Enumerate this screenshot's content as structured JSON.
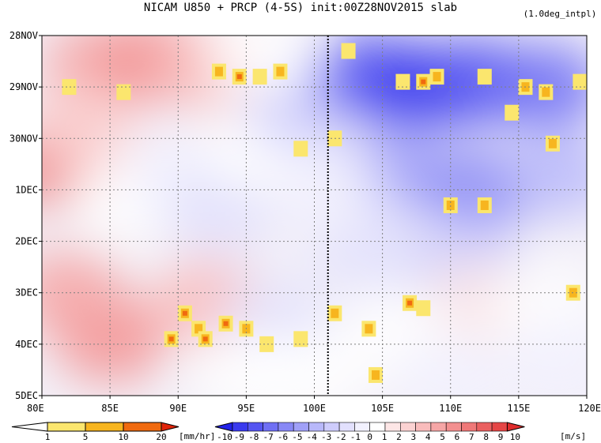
{
  "chart_data": {
    "type": "heatmap",
    "title": "NICAM   U850 + PRCP (4-5S) init:00Z28NOV2015 slab",
    "note": "(1.0deg_intpl)",
    "x_ticks": [
      "80E",
      "85E",
      "90E",
      "95E",
      "100E",
      "105E",
      "110E",
      "115E",
      "120E"
    ],
    "x_range": [
      80,
      120
    ],
    "y_ticks": [
      "28NOV",
      "29NOV",
      "30NOV",
      "1DEC",
      "2DEC",
      "3DEC",
      "4DEC",
      "5DEC"
    ],
    "y_range_days": [
      0,
      7
    ],
    "grid": true,
    "reference_line_lon": 101,
    "prcp_colorbar": {
      "labels": [
        "1",
        "5",
        "10",
        "20"
      ],
      "unit": "[mm/hr]",
      "colors": [
        "#ffffff",
        "#fbe66e",
        "#f7b51f",
        "#f06a0f",
        "#e02409"
      ]
    },
    "u850_colorbar": {
      "labels": [
        "-10",
        "-9",
        "-8",
        "-7",
        "-6",
        "-5",
        "-4",
        "-3",
        "-2",
        "-1",
        "0",
        "1",
        "2",
        "3",
        "4",
        "5",
        "6",
        "7",
        "8",
        "9",
        "10"
      ],
      "unit": "[m/s]",
      "colors": [
        "#2222e8",
        "#3a3aee",
        "#5555f2",
        "#6f6ff4",
        "#8888f6",
        "#a0a0f8",
        "#b8b8fa",
        "#ceccfc",
        "#e2e0fd",
        "#f2f1fe",
        "#ffffff",
        "#fde6e6",
        "#fbd2d2",
        "#f9bcbc",
        "#f6a6a6",
        "#f39090",
        "#ef7878",
        "#ea6060",
        "#e54646",
        "#df2c2c"
      ]
    },
    "u850_field": [
      {
        "lon": 81,
        "day": 2.5,
        "u": 7
      },
      {
        "lon": 84,
        "day": 0.6,
        "u": 5
      },
      {
        "lon": 88,
        "day": 0.5,
        "u": 6
      },
      {
        "lon": 92,
        "day": 0.6,
        "u": 4
      },
      {
        "lon": 83,
        "day": 1.8,
        "u": 3
      },
      {
        "lon": 86,
        "day": 3.2,
        "u": 1
      },
      {
        "lon": 90,
        "day": 2.6,
        "u": -1
      },
      {
        "lon": 93,
        "day": 3.4,
        "u": -2
      },
      {
        "lon": 96,
        "day": 2.2,
        "u": 1
      },
      {
        "lon": 99,
        "day": 1.4,
        "u": -3
      },
      {
        "lon": 85,
        "day": 5.9,
        "u": 6
      },
      {
        "lon": 82,
        "day": 5.0,
        "u": 5
      },
      {
        "lon": 92,
        "day": 5.2,
        "u": 4
      },
      {
        "lon": 97,
        "day": 5.6,
        "u": -2
      },
      {
        "lon": 95,
        "day": 6.6,
        "u": 1
      },
      {
        "lon": 104,
        "day": 0.8,
        "u": -8
      },
      {
        "lon": 108,
        "day": 1.0,
        "u": -9
      },
      {
        "lon": 112,
        "day": 0.9,
        "u": -8
      },
      {
        "lon": 117,
        "day": 1.0,
        "u": -7
      },
      {
        "lon": 106,
        "day": 2.6,
        "u": -5
      },
      {
        "lon": 112,
        "day": 3.0,
        "u": -6
      },
      {
        "lon": 118,
        "day": 2.7,
        "u": -4
      },
      {
        "lon": 104,
        "day": 4.1,
        "u": -2
      },
      {
        "lon": 111,
        "day": 4.4,
        "u": -3
      },
      {
        "lon": 112,
        "day": 5.2,
        "u": 2
      },
      {
        "lon": 117,
        "day": 5.3,
        "u": 1
      },
      {
        "lon": 106,
        "day": 5.8,
        "u": 1
      },
      {
        "lon": 110,
        "day": 6.6,
        "u": -1
      },
      {
        "lon": 118,
        "day": 6.3,
        "u": -1
      },
      {
        "lon": 101,
        "day": 3.0,
        "u": -1
      },
      {
        "lon": 96,
        "day": 0.3,
        "u": 0
      },
      {
        "lon": 100,
        "day": 6.6,
        "u": 0
      }
    ],
    "prcp_cells": [
      {
        "lon": 93.0,
        "day": 0.7,
        "mm": 6
      },
      {
        "lon": 94.5,
        "day": 0.8,
        "mm": 12
      },
      {
        "lon": 96.0,
        "day": 0.8,
        "mm": 4
      },
      {
        "lon": 97.5,
        "day": 0.7,
        "mm": 6
      },
      {
        "lon": 86.0,
        "day": 1.1,
        "mm": 3
      },
      {
        "lon": 82.0,
        "day": 1.0,
        "mm": 2
      },
      {
        "lon": 108.0,
        "day": 0.9,
        "mm": 14
      },
      {
        "lon": 109.0,
        "day": 0.8,
        "mm": 8
      },
      {
        "lon": 106.5,
        "day": 0.9,
        "mm": 4
      },
      {
        "lon": 112.5,
        "day": 0.8,
        "mm": 3
      },
      {
        "lon": 115.5,
        "day": 1.0,
        "mm": 6
      },
      {
        "lon": 117.0,
        "day": 1.1,
        "mm": 8
      },
      {
        "lon": 119.5,
        "day": 0.9,
        "mm": 3
      },
      {
        "lon": 102.5,
        "day": 0.3,
        "mm": 2
      },
      {
        "lon": 90.5,
        "day": 5.4,
        "mm": 12
      },
      {
        "lon": 91.5,
        "day": 5.7,
        "mm": 6
      },
      {
        "lon": 93.5,
        "day": 5.6,
        "mm": 14
      },
      {
        "lon": 95.0,
        "day": 5.7,
        "mm": 8
      },
      {
        "lon": 89.5,
        "day": 5.9,
        "mm": 10
      },
      {
        "lon": 92.0,
        "day": 5.9,
        "mm": 12
      },
      {
        "lon": 96.5,
        "day": 6.0,
        "mm": 4
      },
      {
        "lon": 99.0,
        "day": 5.9,
        "mm": 3
      },
      {
        "lon": 107.0,
        "day": 5.2,
        "mm": 10
      },
      {
        "lon": 108.0,
        "day": 5.3,
        "mm": 4
      },
      {
        "lon": 104.0,
        "day": 5.7,
        "mm": 6
      },
      {
        "lon": 101.5,
        "day": 5.4,
        "mm": 8
      },
      {
        "lon": 104.5,
        "day": 6.6,
        "mm": 6
      },
      {
        "lon": 110.0,
        "day": 3.3,
        "mm": 6
      },
      {
        "lon": 114.5,
        "day": 1.5,
        "mm": 4
      },
      {
        "lon": 117.5,
        "day": 2.1,
        "mm": 6
      },
      {
        "lon": 119.0,
        "day": 5.0,
        "mm": 8
      },
      {
        "lon": 112.5,
        "day": 3.3,
        "mm": 6
      },
      {
        "lon": 99.0,
        "day": 2.2,
        "mm": 3
      },
      {
        "lon": 101.5,
        "day": 2.0,
        "mm": 3
      }
    ]
  }
}
